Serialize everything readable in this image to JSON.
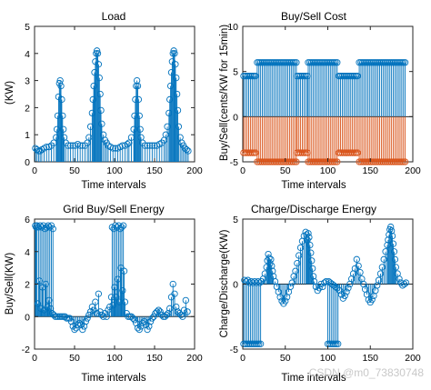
{
  "colors": {
    "blue": "#0072BD",
    "orange": "#D95319",
    "axis": "#262626",
    "grid": "#000000"
  },
  "watermark": "CSDN @m0_73830748",
  "chart_data": [
    {
      "type": "stem",
      "title": "Load",
      "xlabel": "Time intervals",
      "ylabel": "(KW)",
      "xlim": [
        0,
        200
      ],
      "ylim": [
        0,
        5
      ],
      "xticks": [
        "0",
        "50",
        "100",
        "150",
        "200"
      ],
      "yticks": [
        "0",
        "1",
        "2",
        "3",
        "4",
        "5"
      ],
      "series": [
        {
          "color": "blue",
          "x": [
            1,
            3,
            5,
            7,
            9,
            12,
            15,
            18,
            21,
            24,
            27,
            28,
            29,
            30,
            31,
            32,
            33,
            34,
            35,
            36,
            37,
            39,
            42,
            45,
            48,
            51,
            54,
            57,
            60,
            63,
            66,
            68,
            70,
            72,
            73,
            74,
            75,
            76,
            77,
            78,
            79,
            80,
            81,
            82,
            83,
            84,
            86,
            88,
            90,
            92,
            95,
            98,
            101,
            104,
            107,
            110,
            113,
            116,
            118,
            121,
            124,
            125,
            126,
            127,
            128,
            129,
            130,
            131,
            132,
            133,
            135,
            138,
            141,
            144,
            147,
            150,
            153,
            156,
            159,
            162,
            164,
            166,
            168,
            169,
            170,
            171,
            172,
            173,
            174,
            175,
            176,
            177,
            178,
            179,
            180,
            182,
            184,
            186,
            188,
            190,
            192
          ],
          "y": [
            0.5,
            0.45,
            0.4,
            0.4,
            0.45,
            0.5,
            0.55,
            0.55,
            0.6,
            0.7,
            0.9,
            1.2,
            1.7,
            2.4,
            2.9,
            3.0,
            2.8,
            2.3,
            1.7,
            1.2,
            0.9,
            0.7,
            0.6,
            0.6,
            0.6,
            0.6,
            0.65,
            0.6,
            0.6,
            0.6,
            0.7,
            0.9,
            1.3,
            1.8,
            2.3,
            2.8,
            3.3,
            3.7,
            4.0,
            4.1,
            4.0,
            3.6,
            3.1,
            2.5,
            1.9,
            1.4,
            1.0,
            0.8,
            0.7,
            0.6,
            0.55,
            0.5,
            0.5,
            0.5,
            0.55,
            0.6,
            0.6,
            0.65,
            0.7,
            0.9,
            1.2,
            1.7,
            2.3,
            2.8,
            3.0,
            2.8,
            2.3,
            1.7,
            1.2,
            0.9,
            0.7,
            0.6,
            0.6,
            0.6,
            0.6,
            0.6,
            0.6,
            0.65,
            0.7,
            0.8,
            1.0,
            1.3,
            1.8,
            2.3,
            2.8,
            3.3,
            3.7,
            4.0,
            4.1,
            4.0,
            3.6,
            3.1,
            2.5,
            1.9,
            1.3,
            0.9,
            0.7,
            0.6,
            0.5,
            0.45,
            0.4
          ]
        }
      ]
    },
    {
      "type": "stem",
      "title": "Buy/Sell Cost",
      "xlabel": "Time intervals",
      "ylabel": "Buy/Sell(cents/KW for 15min)",
      "xlim": [
        0,
        200
      ],
      "ylim": [
        -5,
        10
      ],
      "xticks": [
        "0",
        "50",
        "100",
        "150",
        "200"
      ],
      "yticks": [
        "-5",
        "0",
        "5",
        "10"
      ],
      "series": [
        {
          "color": "blue",
          "segments": [
            [
              1,
              16,
              4.5
            ],
            [
              17,
              63,
              6
            ],
            [
              64,
              76,
              4.5
            ],
            [
              77,
              112,
              6
            ],
            [
              113,
              136,
              4.5
            ],
            [
              137,
              192,
              6
            ]
          ],
          "step": 2
        },
        {
          "color": "orange",
          "segments": [
            [
              1,
              16,
              -4
            ],
            [
              17,
              63,
              -5
            ],
            [
              64,
              76,
              -4
            ],
            [
              77,
              112,
              -5
            ],
            [
              113,
              136,
              -4
            ],
            [
              137,
              192,
              -5
            ]
          ],
          "step": 2
        }
      ]
    },
    {
      "type": "stem",
      "title": "Grid Buy/Sell Energy",
      "xlabel": "Time intervals",
      "ylabel": "Buy/Sell(KW)",
      "xlim": [
        0,
        200
      ],
      "ylim": [
        -2,
        6
      ],
      "xticks": [
        "0",
        "50",
        "100",
        "150",
        "200"
      ],
      "yticks": [
        "-2",
        "0",
        "2",
        "4",
        "6"
      ],
      "series": [
        {
          "color": "blue",
          "x": [
            1,
            2,
            3,
            4,
            5,
            6,
            7,
            8,
            9,
            10,
            11,
            12,
            13,
            14,
            15,
            16,
            17,
            18,
            19,
            20,
            21,
            22,
            23,
            24,
            26,
            28,
            30,
            32,
            34,
            36,
            38,
            40,
            42,
            44,
            46,
            48,
            50,
            52,
            54,
            56,
            58,
            60,
            62,
            64,
            66,
            68,
            70,
            72,
            74,
            76,
            78,
            80,
            82,
            84,
            86,
            88,
            90,
            92,
            94,
            96,
            97,
            98,
            99,
            100,
            101,
            102,
            103,
            104,
            105,
            106,
            107,
            108,
            109,
            110,
            111,
            112,
            113,
            115,
            117,
            119,
            121,
            123,
            125,
            127,
            129,
            131,
            133,
            135,
            137,
            139,
            141,
            143,
            145,
            147,
            149,
            151,
            153,
            155,
            157,
            159,
            161,
            163,
            165,
            167,
            169,
            171,
            173,
            175,
            177,
            179,
            181,
            183,
            185,
            187,
            189,
            191
          ],
          "y": [
            5.6,
            5.5,
            5.6,
            0.8,
            5.5,
            2.2,
            5.6,
            0.5,
            5.5,
            1.8,
            5.6,
            0.4,
            5.4,
            2.0,
            5.5,
            0.6,
            5.6,
            1.0,
            5.5,
            0.5,
            5.6,
            0.2,
            5.4,
            0.1,
            0.0,
            0.0,
            0.0,
            0.0,
            0.0,
            0.0,
            0.0,
            -0.1,
            -0.1,
            -0.1,
            -0.3,
            -0.6,
            -0.8,
            -0.7,
            -0.5,
            -0.4,
            -0.5,
            -0.8,
            -0.6,
            -0.3,
            -0.1,
            0.1,
            0.3,
            0.6,
            0.4,
            0.9,
            0.2,
            1.4,
            0.3,
            0.1,
            0.0,
            0.2,
            0.0,
            0.4,
            0.6,
            1.2,
            5.5,
            0.7,
            5.4,
            1.8,
            5.6,
            1.2,
            5.5,
            2.3,
            5.6,
            0.9,
            5.4,
            3.0,
            5.5,
            1.6,
            5.6,
            2.8,
            0.9,
            0.2,
            0.0,
            0.0,
            0.0,
            -0.1,
            -0.2,
            -0.4,
            -0.7,
            -0.8,
            -0.6,
            -0.4,
            -0.3,
            -0.5,
            -0.8,
            -0.6,
            -0.3,
            -0.1,
            0.0,
            0.2,
            0.3,
            0.4,
            0.3,
            0.1,
            0.0,
            0.0,
            0.1,
            0.2,
            0.5,
            1.2,
            2.0,
            1.4,
            0.6,
            0.3,
            0.2,
            0.1,
            0.0,
            0.4,
            1.0,
            0.3
          ]
        }
      ]
    },
    {
      "type": "stem",
      "title": "Charge/Discharge Energy",
      "xlabel": "Time intervals",
      "ylabel": "Charge/Discharge(KW)",
      "xlim": [
        0,
        200
      ],
      "ylim": [
        -5,
        5
      ],
      "xticks": [
        "0",
        "50",
        "100",
        "150",
        "200"
      ],
      "yticks": [
        "-5",
        "0",
        "5"
      ],
      "series": [
        {
          "color": "blue",
          "x": [
            1,
            2,
            3,
            4,
            5,
            6,
            7,
            8,
            9,
            10,
            11,
            12,
            13,
            14,
            15,
            16,
            17,
            18,
            19,
            20,
            21,
            22,
            24,
            26,
            28,
            29,
            30,
            31,
            32,
            33,
            34,
            35,
            36,
            38,
            40,
            42,
            44,
            46,
            48,
            50,
            52,
            54,
            56,
            58,
            60,
            62,
            64,
            66,
            68,
            70,
            72,
            74,
            75,
            76,
            77,
            78,
            79,
            80,
            81,
            82,
            83,
            84,
            86,
            88,
            90,
            92,
            94,
            96,
            98,
            100,
            101,
            102,
            103,
            104,
            105,
            106,
            107,
            108,
            109,
            110,
            111,
            112,
            114,
            116,
            118,
            120,
            122,
            124,
            126,
            128,
            130,
            132,
            134,
            136,
            138,
            140,
            142,
            144,
            146,
            148,
            150,
            152,
            154,
            156,
            158,
            160,
            162,
            164,
            166,
            168,
            170,
            171,
            172,
            173,
            174,
            175,
            176,
            177,
            178,
            179,
            180,
            182,
            184,
            186,
            188,
            190,
            192
          ],
          "y": [
            -4.6,
            0.3,
            -4.6,
            0.2,
            -4.6,
            0.3,
            -4.6,
            0.1,
            -4.6,
            0.2,
            -4.6,
            0.1,
            -4.6,
            0.2,
            -4.6,
            0.1,
            -4.6,
            0.2,
            -4.6,
            0.1,
            -4.6,
            0.2,
            0.4,
            0.8,
            1.3,
            1.8,
            2.3,
            2.0,
            1.6,
            1.9,
            1.4,
            1.0,
            0.6,
            0.2,
            -0.2,
            -0.6,
            -1.0,
            -1.3,
            -1.5,
            -1.3,
            -1.0,
            -0.6,
            -0.2,
            0.1,
            0.6,
            1.0,
            1.6,
            2.2,
            2.8,
            3.3,
            3.7,
            4.0,
            3.8,
            3.4,
            3.9,
            3.6,
            3.0,
            2.4,
            1.8,
            1.2,
            0.6,
            0.2,
            -0.2,
            -0.5,
            -0.3,
            0.0,
            -0.2,
            0.1,
            0.2,
            -4.6,
            0.2,
            -4.6,
            0.1,
            -4.6,
            0.0,
            -4.6,
            -0.1,
            -4.6,
            -0.2,
            -4.6,
            -0.3,
            -4.6,
            -0.5,
            -0.8,
            -1.1,
            -0.9,
            -0.6,
            -0.3,
            0.0,
            0.4,
            0.8,
            1.2,
            1.9,
            1.4,
            0.9,
            0.4,
            0.0,
            -0.4,
            -0.8,
            -1.2,
            -1.4,
            -1.2,
            -0.9,
            -0.5,
            -0.1,
            0.3,
            0.8,
            1.3,
            1.9,
            2.5,
            3.0,
            3.4,
            3.8,
            4.2,
            4.4,
            4.1,
            3.7,
            3.1,
            2.5,
            1.9,
            1.3,
            0.8,
            0.4,
            0.1,
            -0.1,
            0.0,
            0.1
          ]
        }
      ]
    }
  ]
}
